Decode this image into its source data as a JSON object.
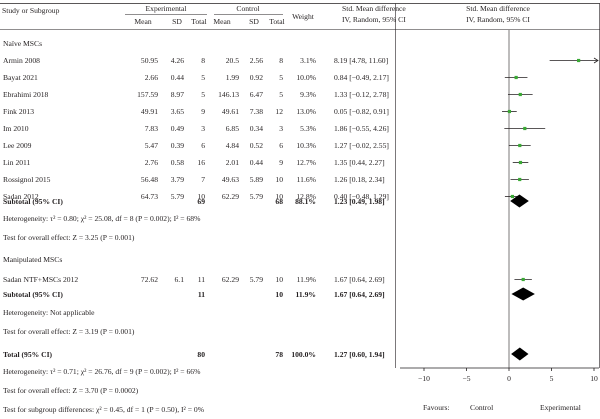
{
  "header": {
    "study": "Study or Subgroup",
    "experimental": "Experimental",
    "control": "Control",
    "mean": "Mean",
    "sd": "SD",
    "total": "Total",
    "weight": "Weight",
    "effect_title": "Std. Mean difference",
    "effect_method": "IV, Random, 95% CI"
  },
  "groups": [
    {
      "name": "Naïve MSCs",
      "studies": [
        {
          "study": "Armin 2008",
          "exp_mean": "50.95",
          "exp_sd": "4.26",
          "exp_total": "8",
          "ctrl_mean": "20.5",
          "ctrl_sd": "2.56",
          "ctrl_total": "8",
          "weight": "3.1%",
          "ci_text": "8.19 [4.78, 11.60]"
        },
        {
          "study": "Bayat 2021",
          "exp_mean": "2.66",
          "exp_sd": "0.44",
          "exp_total": "5",
          "ctrl_mean": "1.99",
          "ctrl_sd": "0.92",
          "ctrl_total": "5",
          "weight": "10.0%",
          "ci_text": "0.84 [−0.49, 2.17]"
        },
        {
          "study": "Ebrahimi 2018",
          "exp_mean": "157.59",
          "exp_sd": "8.97",
          "exp_total": "5",
          "ctrl_mean": "146.13",
          "ctrl_sd": "6.47",
          "ctrl_total": "5",
          "weight": "9.3%",
          "ci_text": "1.33 [−0.12, 2.78]"
        },
        {
          "study": "Fink 2013",
          "exp_mean": "49.91",
          "exp_sd": "3.65",
          "exp_total": "9",
          "ctrl_mean": "49.61",
          "ctrl_sd": "7.38",
          "ctrl_total": "12",
          "weight": "13.0%",
          "ci_text": "0.05 [−0.82, 0.91]"
        },
        {
          "study": "Im 2010",
          "exp_mean": "7.83",
          "exp_sd": "0.49",
          "exp_total": "3",
          "ctrl_mean": "6.85",
          "ctrl_sd": "0.34",
          "ctrl_total": "3",
          "weight": "5.3%",
          "ci_text": "1.86 [−0.55, 4.26]"
        },
        {
          "study": "Lee 2009",
          "exp_mean": "5.47",
          "exp_sd": "0.39",
          "exp_total": "6",
          "ctrl_mean": "4.84",
          "ctrl_sd": "0.52",
          "ctrl_total": "6",
          "weight": "10.3%",
          "ci_text": "1.27 [−0.02, 2.55]"
        },
        {
          "study": "Lin 2011",
          "exp_mean": "2.76",
          "exp_sd": "0.58",
          "exp_total": "16",
          "ctrl_mean": "2.01",
          "ctrl_sd": "0.44",
          "ctrl_total": "9",
          "weight": "12.7%",
          "ci_text": "1.35 [0.44, 2.27]"
        },
        {
          "study": "Rossignol 2015",
          "exp_mean": "56.48",
          "exp_sd": "3.79",
          "exp_total": "7",
          "ctrl_mean": "49.63",
          "ctrl_sd": "5.89",
          "ctrl_total": "10",
          "weight": "11.6%",
          "ci_text": "1.26 [0.18, 2.34]"
        },
        {
          "study": "Sadan 2012",
          "exp_mean": "64.73",
          "exp_sd": "5.79",
          "exp_total": "10",
          "ctrl_mean": "62.29",
          "ctrl_sd": "5.79",
          "ctrl_total": "10",
          "weight": "12.8%",
          "ci_text": "0.40 [−0.48, 1.29]"
        }
      ],
      "subtotal": {
        "label": "Subtotal (95% CI)",
        "exp_total": "69",
        "ctrl_total": "68",
        "weight": "88.1%",
        "ci_text": "1.23 [0.49, 1.98]"
      },
      "heterogeneity": "Heterogeneity: τ² = 0.80; χ² = 25.08, df = 8 (P = 0.002); I² = 68%",
      "overall_test": "Test for overall effect: Z = 3.25 (P = 0.001)"
    },
    {
      "name": "Manipulated MSCs",
      "studies": [
        {
          "study": "Sadan NTF+MSCs 2012",
          "exp_mean": "72.62",
          "exp_sd": "6.1",
          "exp_total": "11",
          "ctrl_mean": "62.29",
          "ctrl_sd": "5.79",
          "ctrl_total": "10",
          "weight": "11.9%",
          "ci_text": "1.67 [0.64, 2.69]"
        }
      ],
      "subtotal": {
        "label": "Subtotal (95% CI)",
        "exp_total": "11",
        "ctrl_total": "10",
        "weight": "11.9%",
        "ci_text": "1.67 [0.64, 2.69]"
      },
      "heterogeneity": "Heterogeneity: Not applicable",
      "overall_test": "Test for overall effect: Z = 3.19 (P = 0.001)"
    }
  ],
  "total": {
    "label": "Total (95% CI)",
    "exp_total": "80",
    "ctrl_total": "78",
    "weight": "100.0%",
    "ci_text": "1.27 [0.60, 1.94]"
  },
  "total_heterogeneity": "Heterogeneity: τ² = 0.71; χ² = 26.76, df = 9 (P = 0.002); I² = 66%",
  "total_overall_test": "Test for overall effect: Z = 3.70 (P = 0.0002)",
  "subgroup_test": "Test for subgroup differences: χ² = 0.45, df = 1 (P = 0.50), I² = 0%",
  "favours": {
    "label": "Favours:",
    "left": "Control",
    "right": "Experimental"
  },
  "colors": {
    "text": "#231f20",
    "marker": "#3aa935",
    "diamond": "#000000",
    "line": "#231f20"
  },
  "chart_data": {
    "type": "scatter",
    "subtype": "forest-plot",
    "xlim": [
      -10,
      10
    ],
    "xticks": [
      -10,
      -5,
      0,
      5,
      10
    ],
    "points": [
      {
        "study": "Armin 2008",
        "smd": 8.19,
        "ci": [
          4.78,
          11.6
        ]
      },
      {
        "study": "Bayat 2021",
        "smd": 0.84,
        "ci": [
          -0.49,
          2.17
        ]
      },
      {
        "study": "Ebrahimi 2018",
        "smd": 1.33,
        "ci": [
          -0.12,
          2.78
        ]
      },
      {
        "study": "Fink 2013",
        "smd": 0.05,
        "ci": [
          -0.82,
          0.91
        ]
      },
      {
        "study": "Im 2010",
        "smd": 1.86,
        "ci": [
          -0.55,
          4.26
        ]
      },
      {
        "study": "Lee 2009",
        "smd": 1.27,
        "ci": [
          -0.02,
          2.55
        ]
      },
      {
        "study": "Lin 2011",
        "smd": 1.35,
        "ci": [
          0.44,
          2.27
        ]
      },
      {
        "study": "Rossignol 2015",
        "smd": 1.26,
        "ci": [
          0.18,
          2.34
        ]
      },
      {
        "study": "Sadan 2012",
        "smd": 0.4,
        "ci": [
          -0.48,
          1.29
        ]
      },
      {
        "study": "Sadan NTF+MSCs 2012",
        "smd": 1.67,
        "ci": [
          0.64,
          2.69
        ]
      }
    ],
    "diamonds": [
      {
        "label": "Subtotal (95% CI)",
        "group": "Naïve MSCs",
        "smd": 1.23,
        "ci": [
          0.49,
          1.98
        ]
      },
      {
        "label": "Subtotal (95% CI)",
        "group": "Manipulated MSCs",
        "smd": 1.67,
        "ci": [
          0.64,
          2.69
        ]
      },
      {
        "label": "Total (95% CI)",
        "smd": 1.27,
        "ci": [
          0.6,
          1.94
        ]
      }
    ]
  }
}
